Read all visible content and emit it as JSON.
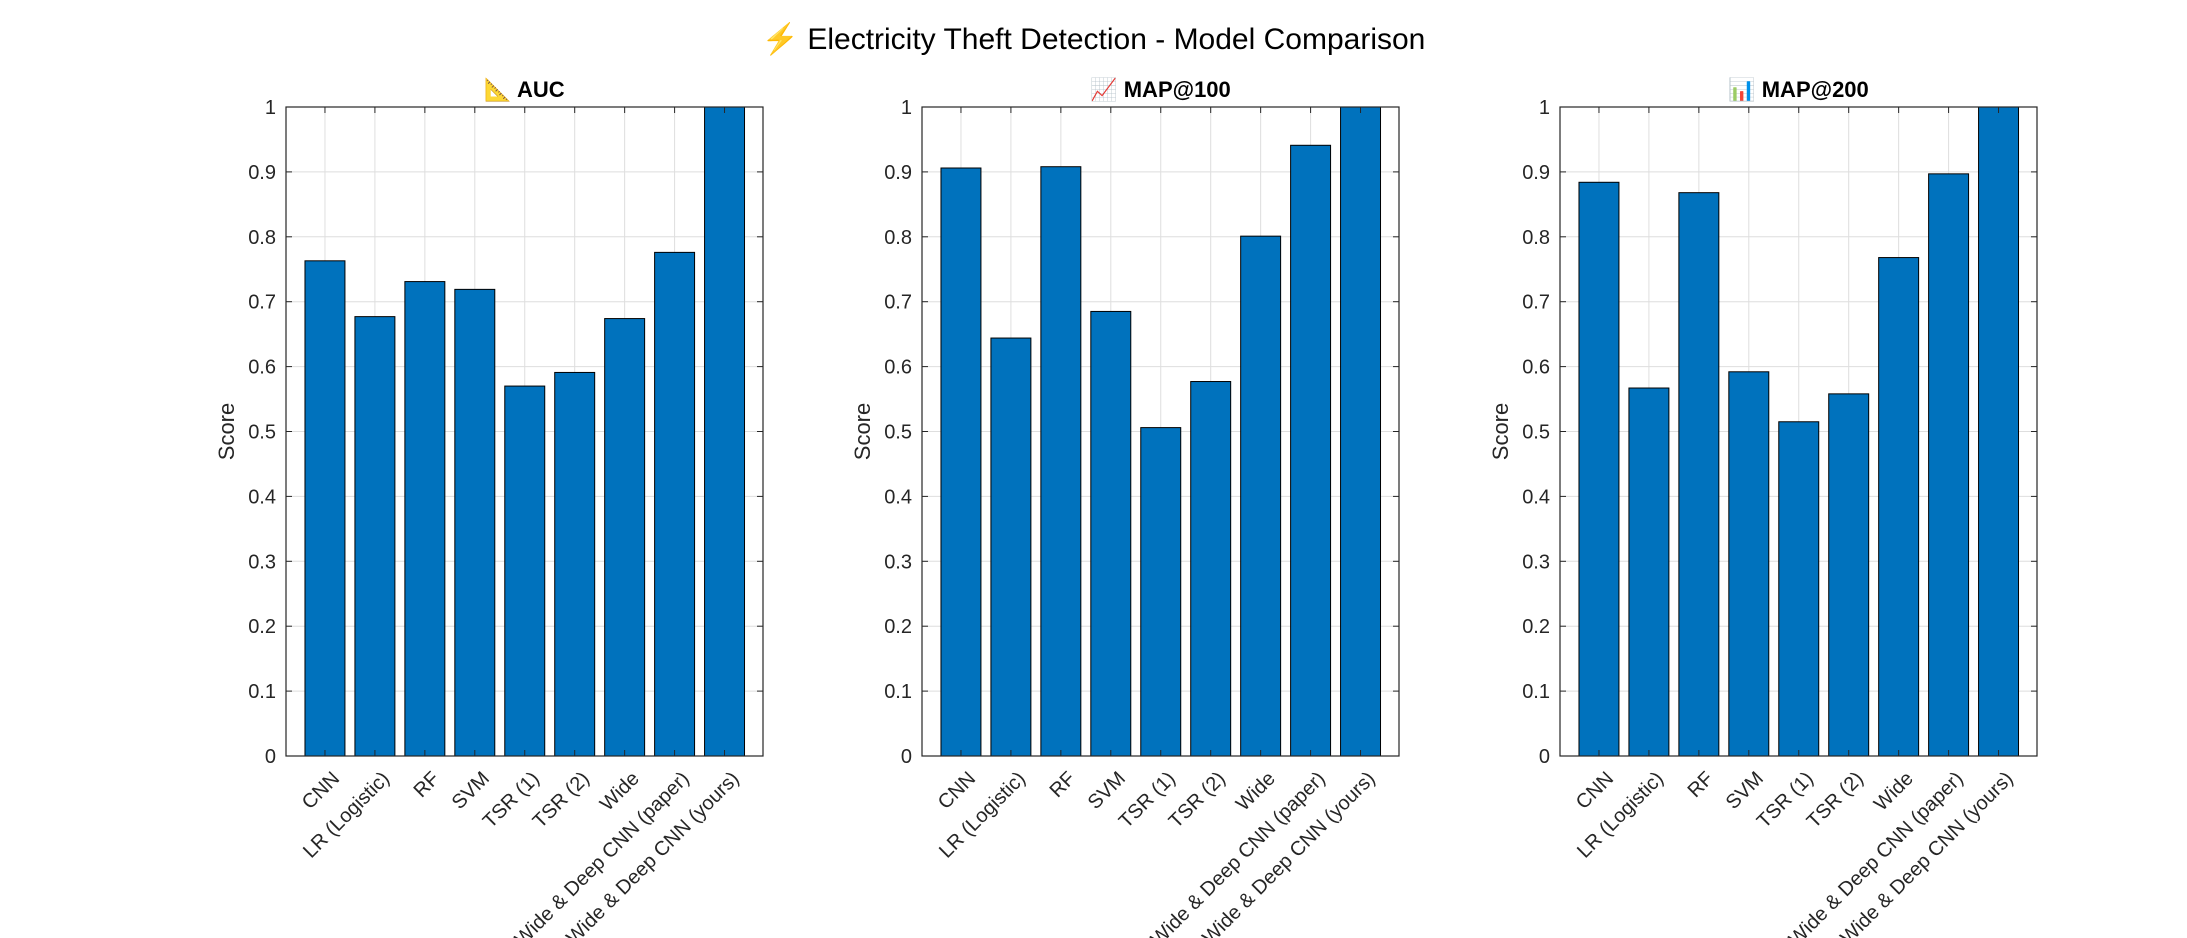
{
  "suptitle": "⚡ Electricity Theft Detection - Model Comparison",
  "colors": {
    "bar": "#0072BD",
    "bar_edge": "#000000",
    "grid": "#dedede",
    "axis": "#262626"
  },
  "chart_data": [
    {
      "type": "bar",
      "title": "📐 AUC",
      "ylabel": "Score",
      "ylim": [
        0,
        1
      ],
      "yticks": [
        0,
        0.1,
        0.2,
        0.3,
        0.4,
        0.5,
        0.6,
        0.7,
        0.8,
        0.9,
        1
      ],
      "grid": true,
      "categories": [
        "CNN",
        "LR (Logistic)",
        "RF",
        "SVM",
        "TSR (1)",
        "TSR (2)",
        "Wide",
        "Wide & Deep CNN (paper)",
        "Wide & Deep CNN (yours)"
      ],
      "values": [
        0.763,
        0.677,
        0.731,
        0.719,
        0.57,
        0.591,
        0.674,
        0.776,
        1.0
      ]
    },
    {
      "type": "bar",
      "title": "📈 MAP@100",
      "ylabel": "Score",
      "ylim": [
        0,
        1
      ],
      "yticks": [
        0,
        0.1,
        0.2,
        0.3,
        0.4,
        0.5,
        0.6,
        0.7,
        0.8,
        0.9,
        1
      ],
      "grid": true,
      "categories": [
        "CNN",
        "LR (Logistic)",
        "RF",
        "SVM",
        "TSR (1)",
        "TSR (2)",
        "Wide",
        "Wide & Deep CNN (paper)",
        "Wide & Deep CNN (yours)"
      ],
      "values": [
        0.906,
        0.644,
        0.908,
        0.685,
        0.506,
        0.577,
        0.801,
        0.941,
        1.0
      ]
    },
    {
      "type": "bar",
      "title": "📊 MAP@200",
      "ylabel": "Score",
      "ylim": [
        0,
        1
      ],
      "yticks": [
        0,
        0.1,
        0.2,
        0.3,
        0.4,
        0.5,
        0.6,
        0.7,
        0.8,
        0.9,
        1
      ],
      "grid": true,
      "categories": [
        "CNN",
        "LR (Logistic)",
        "RF",
        "SVM",
        "TSR (1)",
        "TSR (2)",
        "Wide",
        "Wide & Deep CNN (paper)",
        "Wide & Deep CNN (yours)"
      ],
      "values": [
        0.884,
        0.567,
        0.868,
        0.592,
        0.515,
        0.558,
        0.768,
        0.897,
        1.0
      ]
    }
  ]
}
